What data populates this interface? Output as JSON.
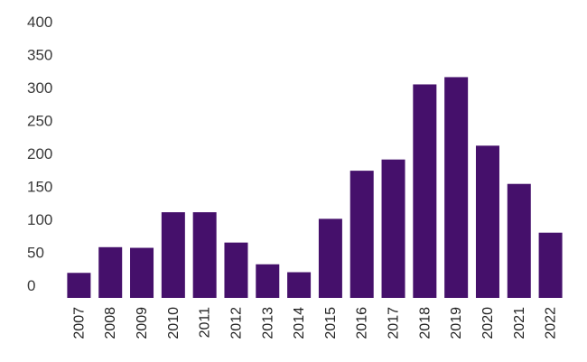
{
  "chart_data": {
    "type": "bar",
    "title": "",
    "xlabel": "",
    "ylabel": "",
    "categories": [
      "2007",
      "2008",
      "2009",
      "2010",
      "2011",
      "2012",
      "2013",
      "2014",
      "2015",
      "2016",
      "2017",
      "2018",
      "2019",
      "2020",
      "2021",
      "2022"
    ],
    "values": [
      38,
      77,
      76,
      130,
      130,
      84,
      51,
      39,
      120,
      193,
      210,
      324,
      335,
      231,
      173,
      99
    ],
    "ylim": [
      0,
      400
    ],
    "yticks": [
      "0",
      "50",
      "100",
      "150",
      "200",
      "250",
      "300",
      "350",
      "400"
    ],
    "grid": false,
    "legend": "none",
    "bar_color": "#45106b"
  }
}
